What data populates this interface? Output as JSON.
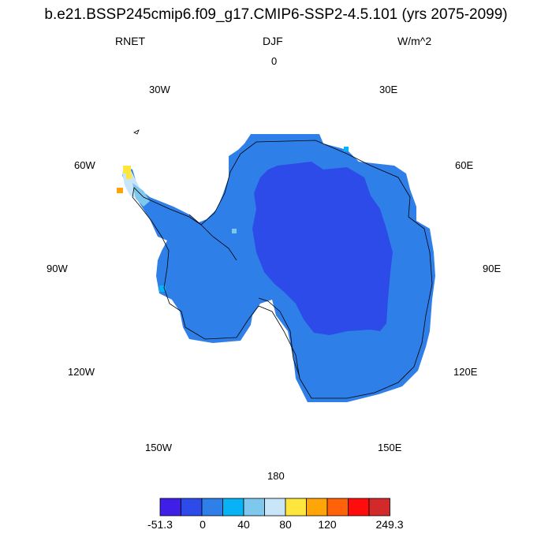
{
  "title": "b.e21.BSSP245cmip6.f09_g17.CMIP6-SSP2-4.5.101 (yrs 2075-2099)",
  "variable": "RNET",
  "season": "DJF",
  "units": "W/m^2",
  "longitude_labels": {
    "lon_0": "0",
    "lon_30e": "30E",
    "lon_60e": "60E",
    "lon_90e": "90E",
    "lon_120e": "120E",
    "lon_150e": "150E",
    "lon_180": "180",
    "lon_150w": "150W",
    "lon_120w": "120W",
    "lon_90w": "90W",
    "lon_60w": "60W",
    "lon_30w": "30W"
  },
  "colorbar": {
    "colors": [
      "#3f1ee8",
      "#2d4be8",
      "#2f7fe8",
      "#08b3f5",
      "#7ec8ee",
      "#c8e6f8",
      "#ffe63c",
      "#ffa508",
      "#ff6208",
      "#ff0c0c",
      "#d22a2a"
    ],
    "labels": [
      "-51.3",
      "0",
      "40",
      "80",
      "120",
      "249.3"
    ]
  },
  "chart_data": {
    "type": "map",
    "projection": "south-polar-stereographic",
    "region": "Antarctica",
    "field": "RNET",
    "season": "DJF",
    "units": "W/m^2",
    "color_levels": [
      -51.3,
      0,
      40,
      80,
      120,
      249.3
    ],
    "dominant_values": {
      "east_antarctic_interior": "-51.3 to 0",
      "coastal_and_west_antarctica": "0 to 40",
      "antarctic_peninsula_tip": "80 to 249.3"
    }
  }
}
